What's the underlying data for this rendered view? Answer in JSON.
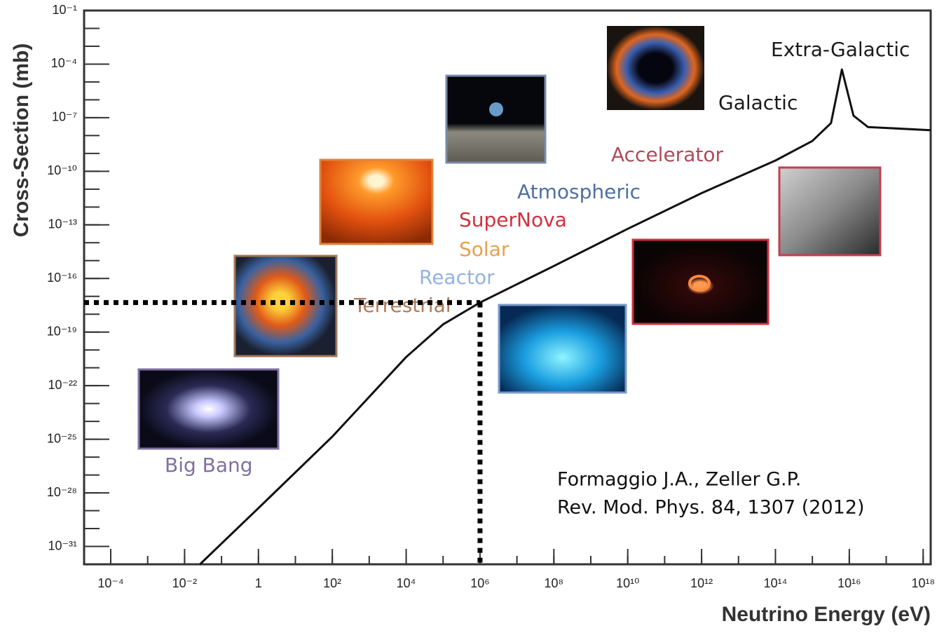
{
  "chart_data": {
    "type": "line",
    "x_label": "Neutrino Energy (eV)",
    "y_label": "Cross-Section (mb)",
    "x_scale": "log",
    "y_scale": "log",
    "xlim": [
      1.9e-05,
      1.6e+18
    ],
    "ylim": [
      1e-32,
      0.1
    ],
    "xticks": [
      {
        "value": 0.0001,
        "label": "10⁻⁴"
      },
      {
        "value": 0.01,
        "label": "10⁻²"
      },
      1,
      {
        "value": 100.0,
        "label": "10²"
      },
      {
        "value": 10000.0,
        "label": "10⁴"
      },
      {
        "value": 1000000.0,
        "label": "10⁶"
      },
      {
        "value": 100000000.0,
        "label": "10⁸"
      },
      {
        "value": 10000000000.0,
        "label": "10¹⁰"
      },
      {
        "value": 1000000000000.0,
        "label": "10¹²"
      },
      {
        "value": 100000000000000.0,
        "label": "10¹⁴"
      },
      {
        "value": 1e+16,
        "label": "10¹⁶"
      },
      {
        "value": 1e+18,
        "label": "10¹⁸"
      }
    ],
    "yticks": [
      {
        "value": 0.1,
        "label": "10⁻¹"
      },
      {
        "value": 0.0001,
        "label": "10⁻⁴"
      },
      {
        "value": 1e-07,
        "label": "10⁻⁷"
      },
      {
        "value": 1e-10,
        "label": "10⁻¹⁰"
      },
      {
        "value": 1e-13,
        "label": "10⁻¹³"
      },
      {
        "value": 1e-16,
        "label": "10⁻¹⁶"
      },
      {
        "value": 1e-19,
        "label": "10⁻¹⁹"
      },
      {
        "value": 1e-22,
        "label": "10⁻²²"
      },
      {
        "value": 1e-25,
        "label": "10⁻²⁵"
      },
      {
        "value": 1e-28,
        "label": "10⁻²⁸"
      },
      {
        "value": 1e-31,
        "label": "10⁻³¹"
      }
    ],
    "x": [
      0.026,
      1,
      100,
      10000,
      100000,
      1000000,
      100000000.0,
      10000000000.0,
      1000000000000.0,
      100000000000000.0,
      1000000000000000.0,
      3200000000000000.0,
      6300000000000000.0,
      1.3e+16,
      3.2e+16,
      1.6e+18
    ],
    "values": [
      1e-32,
      1.4e-29,
      1.4e-25,
      4e-21,
      2.7e-19,
      4.5e-18,
      5e-16,
      6e-14,
      6e-12,
      4e-10,
      5e-09,
      5e-08,
      5e-05,
      1.3e-07,
      3e-08,
      2e-08
    ],
    "color": "#111111",
    "guide": {
      "x": 1000000,
      "y": 4.5e-18
    },
    "sources": [
      {
        "text": "Extra-Galactic",
        "color": "#1a1a1a"
      },
      {
        "text": "Galactic",
        "color": "#1a1a1a"
      },
      {
        "text": "Accelerator",
        "color": "#b04a5a"
      },
      {
        "text": "Atmospheric",
        "color": "#4f6f9f"
      },
      {
        "text": "SuperNova",
        "color": "#d03040"
      },
      {
        "text": "Solar",
        "color": "#e8a050"
      },
      {
        "text": "Reactor",
        "color": "#93b3e0"
      },
      {
        "text": "Terrestrial",
        "color": "#b07a58"
      },
      {
        "text": "Big Bang",
        "color": "#8070a0"
      }
    ],
    "citation": [
      "Formaggio J.A., Zeller G.P.",
      "Rev. Mod. Phys. 84, 1307 (2012)"
    ]
  }
}
